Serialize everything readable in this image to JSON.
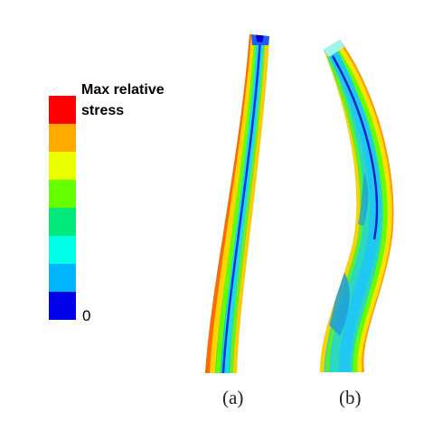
{
  "legend": {
    "title_line1": "Max relative",
    "title_line2": "stress",
    "min_label": "0",
    "colors": [
      "#ff0000",
      "#ffaa00",
      "#eaff00",
      "#66ff00",
      "#00e87a",
      "#00ffe6",
      "#00b4ff",
      "#0000e8"
    ]
  },
  "panels": {
    "a_caption": "(a)",
    "b_caption": "(b)"
  }
}
